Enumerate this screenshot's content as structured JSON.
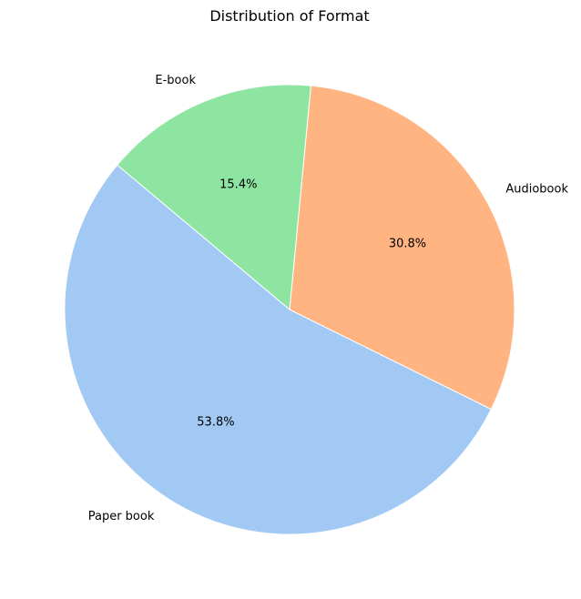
{
  "chart_data": {
    "type": "pie",
    "title": "Distribution of Format",
    "categories": [
      "Paper book",
      "Audiobook",
      "E-book"
    ],
    "values": [
      53.8,
      30.8,
      15.4
    ],
    "percent_labels": [
      "53.8%",
      "30.8%",
      "15.4%"
    ],
    "colors": [
      "#a1c9f4",
      "#ffb482",
      "#8de5a1"
    ],
    "start_angle_deg": 140,
    "direction": "counterclockwise"
  }
}
